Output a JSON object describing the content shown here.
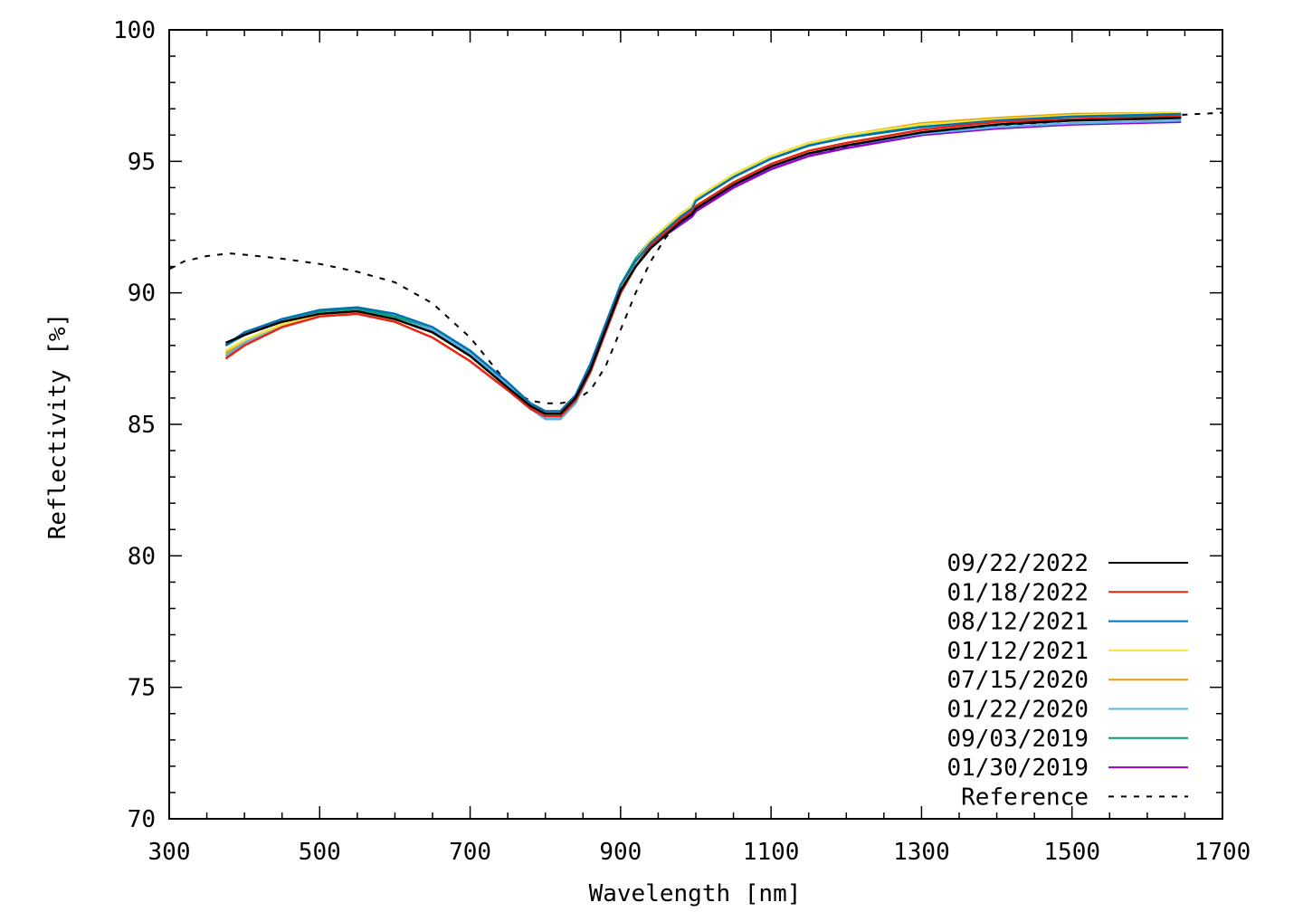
{
  "chart_data": {
    "type": "line",
    "xlabel": "Wavelength [nm]",
    "ylabel": "Reflectivity [%]",
    "xlim": [
      300,
      1700
    ],
    "ylim": [
      70,
      100
    ],
    "xticks": [
      300,
      500,
      700,
      900,
      1100,
      1300,
      1500,
      1700
    ],
    "yticks": [
      70,
      75,
      80,
      85,
      90,
      95,
      100
    ],
    "grid": false,
    "legend_position": "bottom-right",
    "series": [
      {
        "name": "09/22/2022",
        "color": "#000000",
        "dash": "solid",
        "x": [
          375,
          400,
          450,
          500,
          550,
          600,
          650,
          700,
          750,
          780,
          800,
          820,
          840,
          860,
          880,
          900,
          920,
          940,
          960,
          980,
          995,
          1000,
          1050,
          1100,
          1150,
          1200,
          1300,
          1400,
          1500,
          1645
        ],
        "y": [
          88.1,
          88.4,
          88.9,
          89.2,
          89.3,
          89.0,
          88.5,
          87.6,
          86.4,
          85.7,
          85.4,
          85.4,
          86.0,
          87.1,
          88.6,
          90.1,
          91.0,
          91.7,
          92.2,
          92.7,
          93.0,
          93.2,
          94.1,
          94.8,
          95.3,
          95.6,
          96.1,
          96.4,
          96.55,
          96.65
        ]
      },
      {
        "name": "01/18/2022",
        "color": "#e8230f",
        "dash": "solid",
        "x": [
          375,
          400,
          450,
          500,
          550,
          600,
          650,
          700,
          750,
          780,
          800,
          820,
          840,
          860,
          880,
          900,
          920,
          940,
          960,
          980,
          995,
          1000,
          1050,
          1100,
          1150,
          1200,
          1300,
          1400,
          1500,
          1645
        ],
        "y": [
          87.5,
          88.0,
          88.7,
          89.1,
          89.2,
          88.9,
          88.3,
          87.4,
          86.3,
          85.6,
          85.3,
          85.3,
          85.9,
          87.0,
          88.5,
          90.0,
          91.0,
          91.8,
          92.3,
          92.8,
          93.1,
          93.3,
          94.2,
          94.9,
          95.4,
          95.7,
          96.2,
          96.5,
          96.6,
          96.7
        ]
      },
      {
        "name": "08/12/2021",
        "color": "#0072b2",
        "dash": "solid",
        "x": [
          375,
          400,
          450,
          500,
          550,
          600,
          650,
          700,
          750,
          780,
          800,
          820,
          840,
          860,
          880,
          900,
          920,
          940,
          960,
          980,
          995,
          1000,
          1050,
          1100,
          1150,
          1200,
          1300,
          1400,
          1500,
          1645
        ],
        "y": [
          88.0,
          88.5,
          89.0,
          89.35,
          89.45,
          89.2,
          88.7,
          87.8,
          86.6,
          85.8,
          85.5,
          85.5,
          86.1,
          87.3,
          88.8,
          90.3,
          91.2,
          91.9,
          92.4,
          92.9,
          93.2,
          93.5,
          94.4,
          95.1,
          95.6,
          95.9,
          96.3,
          96.55,
          96.7,
          96.8
        ]
      },
      {
        "name": "01/12/2021",
        "color": "#f0e442",
        "dash": "solid",
        "x": [
          375,
          400,
          450,
          500,
          550,
          600,
          650,
          700,
          750,
          780,
          800,
          820,
          840,
          860,
          880,
          900,
          920,
          940,
          960,
          980,
          995,
          1000,
          1050,
          1100,
          1150,
          1200,
          1300,
          1400,
          1500,
          1645
        ],
        "y": [
          87.8,
          88.2,
          88.8,
          89.2,
          89.3,
          89.0,
          88.5,
          87.6,
          86.4,
          85.7,
          85.4,
          85.4,
          86.0,
          87.2,
          88.7,
          90.2,
          91.2,
          92.0,
          92.5,
          93.0,
          93.3,
          93.6,
          94.5,
          95.2,
          95.7,
          96.0,
          96.4,
          96.6,
          96.75,
          96.85
        ]
      },
      {
        "name": "07/15/2020",
        "color": "#e69f00",
        "dash": "solid",
        "x": [
          375,
          400,
          450,
          500,
          550,
          600,
          650,
          700,
          750,
          780,
          800,
          820,
          840,
          860,
          880,
          900,
          920,
          940,
          960,
          980,
          995,
          1000,
          1050,
          1100,
          1150,
          1200,
          1300,
          1400,
          1500,
          1645
        ],
        "y": [
          87.7,
          88.2,
          88.8,
          89.2,
          89.3,
          89.0,
          88.5,
          87.6,
          86.4,
          85.7,
          85.4,
          85.4,
          86.0,
          87.2,
          88.7,
          90.2,
          91.2,
          92.0,
          92.5,
          93.0,
          93.3,
          93.6,
          94.5,
          95.2,
          95.7,
          96.0,
          96.45,
          96.65,
          96.8,
          96.85
        ]
      },
      {
        "name": "01/22/2020",
        "color": "#56b4e9",
        "dash": "solid",
        "x": [
          375,
          400,
          450,
          500,
          550,
          600,
          650,
          700,
          750,
          780,
          800,
          820,
          840,
          860,
          880,
          900,
          920,
          940,
          960,
          980,
          995,
          1000,
          1050,
          1100,
          1150,
          1200,
          1300,
          1400,
          1500,
          1645
        ],
        "y": [
          87.6,
          88.1,
          88.8,
          89.2,
          89.3,
          89.0,
          88.6,
          87.7,
          86.5,
          85.6,
          85.2,
          85.2,
          85.8,
          87.0,
          88.5,
          90.0,
          91.0,
          91.7,
          92.2,
          92.7,
          93.0,
          93.2,
          94.1,
          94.8,
          95.3,
          95.6,
          96.05,
          96.3,
          96.45,
          96.55
        ]
      },
      {
        "name": "09/03/2019",
        "color": "#009e73",
        "dash": "solid",
        "x": [
          375,
          400,
          450,
          500,
          550,
          600,
          650,
          700,
          750,
          780,
          800,
          820,
          840,
          860,
          880,
          900,
          920,
          940,
          960,
          980,
          995,
          1000,
          1050,
          1100,
          1150,
          1200,
          1300,
          1400,
          1500,
          1645
        ],
        "y": [
          88.0,
          88.4,
          89.0,
          89.3,
          89.4,
          89.1,
          88.6,
          87.7,
          86.5,
          85.8,
          85.5,
          85.5,
          86.1,
          87.3,
          88.8,
          90.3,
          91.3,
          92.0,
          92.5,
          93.0,
          93.3,
          93.5,
          94.4,
          95.1,
          95.6,
          95.9,
          96.35,
          96.55,
          96.7,
          96.75
        ]
      },
      {
        "name": "01/30/2019",
        "color": "#9400d3",
        "dash": "solid",
        "x": [
          375,
          400,
          450,
          500,
          550,
          600,
          650,
          700,
          750,
          780,
          800,
          820,
          840,
          860,
          880,
          900,
          920,
          940,
          960,
          980,
          995,
          1000,
          1050,
          1100,
          1150,
          1200,
          1300,
          1400,
          1500,
          1645
        ],
        "y": [
          88.0,
          88.4,
          89.0,
          89.3,
          89.4,
          89.1,
          88.6,
          87.7,
          86.5,
          85.7,
          85.4,
          85.4,
          86.0,
          87.1,
          88.6,
          90.1,
          91.0,
          91.7,
          92.2,
          92.6,
          92.9,
          93.1,
          94.0,
          94.7,
          95.2,
          95.5,
          96.0,
          96.25,
          96.4,
          96.5
        ]
      },
      {
        "name": "Reference",
        "color": "#000000",
        "dash": "dashed",
        "x": [
          300,
          320,
          350,
          380,
          400,
          450,
          500,
          550,
          600,
          650,
          700,
          720,
          740,
          760,
          780,
          800,
          820,
          840,
          860,
          880,
          900,
          920,
          940,
          960,
          980,
          1000,
          1050,
          1100,
          1150,
          1200,
          1300,
          1400,
          1500,
          1600,
          1700
        ],
        "y": [
          90.9,
          91.2,
          91.4,
          91.5,
          91.45,
          91.3,
          91.1,
          90.8,
          90.4,
          89.6,
          88.3,
          87.6,
          86.9,
          86.2,
          85.9,
          85.8,
          85.8,
          85.9,
          86.3,
          87.2,
          88.6,
          90.0,
          91.2,
          92.1,
          92.7,
          93.1,
          94.0,
          94.7,
          95.2,
          95.55,
          96.05,
          96.35,
          96.55,
          96.7,
          96.85
        ]
      }
    ]
  }
}
